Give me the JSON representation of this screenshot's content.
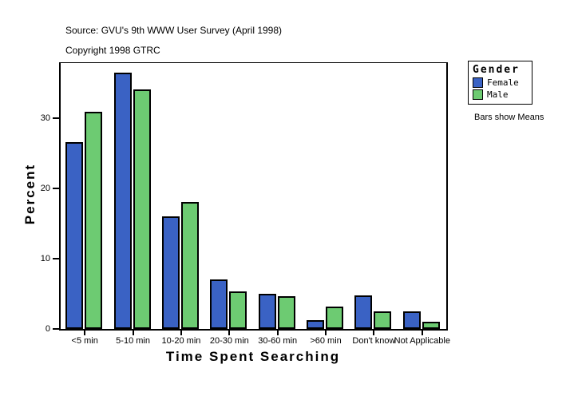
{
  "header": {
    "source": "Source: GVU's 9th WWW User Survey (April 1998)",
    "copyright": "Copyright 1998 GTRC"
  },
  "legend": {
    "title": "Gender",
    "items": [
      {
        "label": "Female",
        "color": "#3A62C4"
      },
      {
        "label": "Male",
        "color": "#6DCB72"
      }
    ],
    "note": "Bars show Means"
  },
  "chart_data": {
    "type": "bar",
    "title": "",
    "xlabel": "Time Spent Searching",
    "ylabel": "Percent",
    "categories": [
      "<5 min",
      "5-10 min",
      "10-20 min",
      "20-30 min",
      "30-60 min",
      ">60 min",
      "Don't know",
      "Not Applicable"
    ],
    "series": [
      {
        "name": "Female",
        "color": "#3A62C4",
        "values": [
          26.6,
          36.5,
          16.1,
          7.0,
          5.0,
          1.3,
          4.8,
          2.5
        ]
      },
      {
        "name": "Male",
        "color": "#6DCB72",
        "values": [
          31.0,
          34.1,
          18.1,
          5.3,
          4.7,
          3.2,
          2.5,
          1.0
        ]
      }
    ],
    "yticks": [
      0,
      10,
      20,
      30
    ],
    "ylim": [
      0,
      37.9
    ],
    "grid": false,
    "legend_position": "right",
    "unit": "percent"
  }
}
